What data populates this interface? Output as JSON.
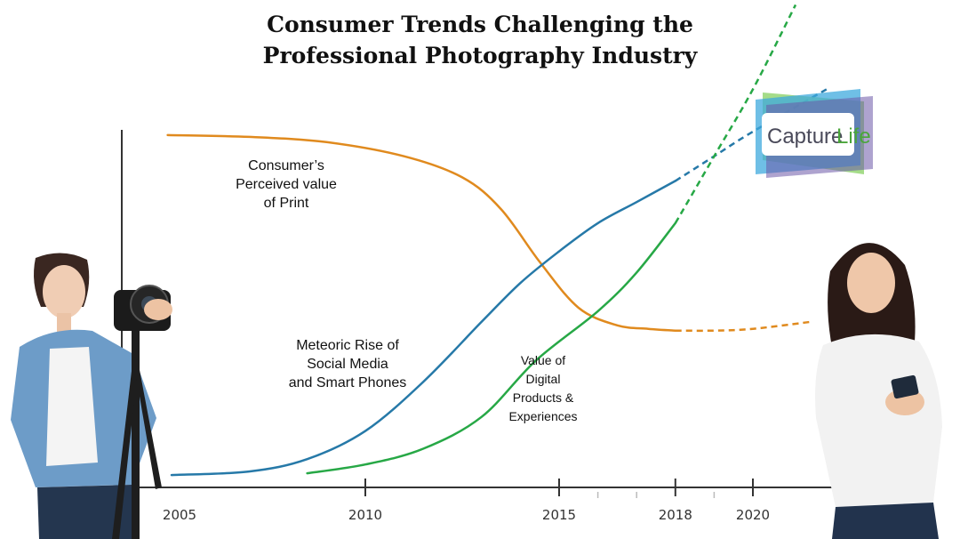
{
  "chart_data": {
    "type": "line",
    "title": "Consumer Trends Challenging the Professional Photography Industry",
    "title_lines": [
      "Consumer Trends Challenging the",
      "Professional Photography Industry"
    ],
    "xlabel": "",
    "ylabel": "",
    "x_ticks": [
      2005,
      2010,
      2015,
      2018,
      2020
    ],
    "x_tick_labels": [
      "2005",
      "2010",
      "2015",
      "2018",
      "2020"
    ],
    "minor_ticks": [
      2016,
      2017,
      2019
    ],
    "xlim": [
      2004.5,
      2022
    ],
    "ylim": [
      0,
      10
    ],
    "grid": false,
    "legend": "none",
    "series": [
      {
        "name": "Consumer’s Perceived value of Print",
        "label_lines": [
          "Consumer’s",
          "Perceived value",
          "of Print"
        ],
        "color": "#E08A1E",
        "x": [
          2004.9,
          2007,
          2009,
          2011,
          2012.5,
          2013.5,
          2014.5,
          2015.5,
          2016.5,
          2017.3,
          2018
        ],
        "y": [
          9.8,
          9.75,
          9.6,
          9.2,
          8.6,
          7.7,
          6.2,
          4.9,
          4.4,
          4.3,
          4.25
        ],
        "projection": {
          "x": [
            2018,
            2019,
            2020,
            2021.5
          ],
          "y": [
            4.25,
            4.25,
            4.3,
            4.5
          ]
        }
      },
      {
        "name": "Meteoric Rise of Social Media and Smart Phones",
        "label_lines": [
          "Meteoric Rise of",
          "Social Media",
          "and Smart Phones"
        ],
        "color": "#2679A8",
        "x": [
          2005,
          2007,
          2008.5,
          2010,
          2011.5,
          2013,
          2014,
          2015,
          2016,
          2017,
          2018
        ],
        "y": [
          0.15,
          0.25,
          0.6,
          1.4,
          2.8,
          4.5,
          5.6,
          6.5,
          7.3,
          7.9,
          8.5
        ],
        "projection": {
          "x": [
            2018,
            2019,
            2020,
            2021.9
          ],
          "y": [
            8.5,
            9.2,
            9.9,
            11.1
          ]
        }
      },
      {
        "name": "Value of Digital Products & Experiences",
        "label_lines": [
          "Value of",
          "Digital",
          "Products &",
          "Experiences"
        ],
        "color": "#27A846",
        "x": [
          2008.5,
          2010,
          2011.5,
          2013,
          2014.4,
          2016,
          2017,
          2018
        ],
        "y": [
          0.2,
          0.45,
          0.9,
          1.8,
          3.4,
          4.8,
          5.9,
          7.3
        ],
        "projection": {
          "x": [
            2018,
            2019,
            2020,
            2021.1
          ],
          "y": [
            7.3,
            9.2,
            11.1,
            13.5
          ]
        }
      }
    ]
  },
  "logo": {
    "text_a": "Capture",
    "text_b": "Life"
  },
  "colors": {
    "axis": "#333333",
    "text": "#111111"
  }
}
